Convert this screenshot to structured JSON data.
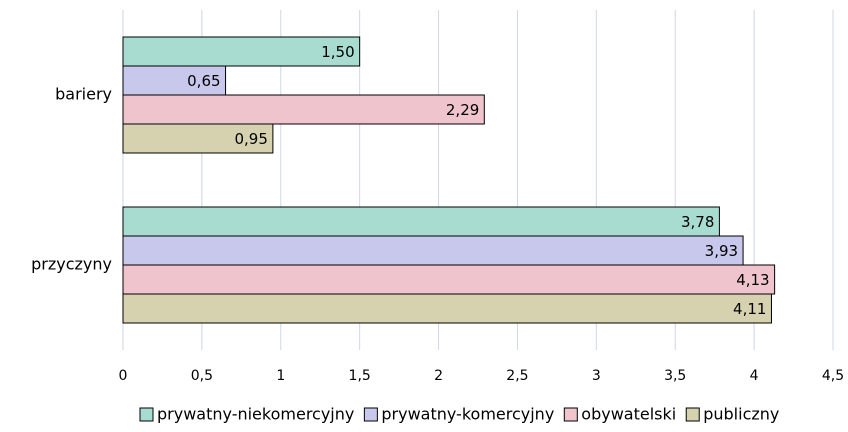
{
  "chart_data": {
    "type": "barh",
    "categories": [
      "bariery",
      "przyczyny"
    ],
    "series": [
      {
        "name": "prywatny-niekomercyjny",
        "color": "#a8dcd0",
        "values": [
          1.5,
          3.78
        ],
        "value_labels": [
          "1,50",
          "3,78"
        ]
      },
      {
        "name": "prywatny-komercyjny",
        "color": "#c8c8ec",
        "values": [
          0.65,
          3.93
        ],
        "value_labels": [
          "0,65",
          "3,93"
        ]
      },
      {
        "name": "obywatelski",
        "color": "#f0c4cc",
        "values": [
          2.29,
          4.13
        ],
        "value_labels": [
          "2,29",
          "4,13"
        ]
      },
      {
        "name": "publiczny",
        "color": "#d6d2b0",
        "values": [
          0.95,
          4.11
        ],
        "value_labels": [
          "0,95",
          "4,11"
        ]
      }
    ],
    "xlim": [
      0,
      4.5
    ],
    "xticks": [
      0,
      {
        "value": 0.5,
        "label": "0,5"
      },
      1,
      {
        "value": 1.5,
        "label": "1,5"
      },
      2,
      {
        "value": 2.5,
        "label": "2,5"
      },
      3,
      {
        "value": 3.5,
        "label": "3,5"
      },
      4,
      {
        "value": 4.5,
        "label": "4,5"
      }
    ],
    "grid": true,
    "legend": "bottom"
  }
}
